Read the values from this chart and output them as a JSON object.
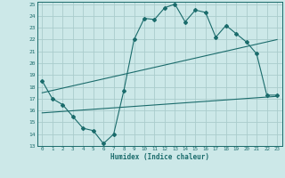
{
  "xlabel": "Humidex (Indice chaleur)",
  "bg_color": "#cce8e8",
  "grid_color": "#aacccc",
  "line_color": "#1a6b6b",
  "xlim": [
    -0.5,
    23.5
  ],
  "ylim": [
    13,
    25.2
  ],
  "xticks": [
    0,
    1,
    2,
    3,
    4,
    5,
    6,
    7,
    8,
    9,
    10,
    11,
    12,
    13,
    14,
    15,
    16,
    17,
    18,
    19,
    20,
    21,
    22,
    23
  ],
  "yticks": [
    13,
    14,
    15,
    16,
    17,
    18,
    19,
    20,
    21,
    22,
    23,
    24,
    25
  ],
  "series1_x": [
    0,
    1,
    2,
    3,
    4,
    5,
    6,
    7,
    8,
    9,
    10,
    11,
    12,
    13,
    14,
    15,
    16,
    17,
    18,
    19,
    20,
    21,
    22,
    23
  ],
  "series1_y": [
    18.5,
    17.0,
    16.5,
    15.5,
    14.5,
    14.3,
    13.2,
    14.0,
    17.7,
    22.0,
    23.8,
    23.7,
    24.7,
    25.0,
    23.5,
    24.5,
    24.3,
    22.2,
    23.2,
    22.5,
    21.8,
    20.8,
    17.3,
    17.3
  ],
  "series2_x": [
    0,
    23
  ],
  "series2_y": [
    17.5,
    22.0
  ],
  "series3_x": [
    0,
    23
  ],
  "series3_y": [
    15.8,
    17.2
  ]
}
